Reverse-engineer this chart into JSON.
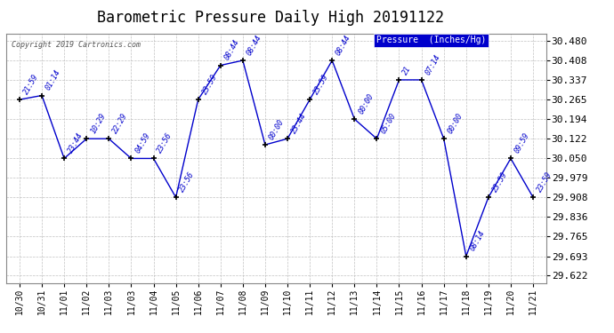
{
  "title": "Barometric Pressure Daily High 20191122",
  "copyright": "Copyright 2019 Cartronics.com",
  "legend_label": "Pressure  (Inches/Hg)",
  "x_labels": [
    "10/30",
    "10/31",
    "11/01",
    "11/02",
    "11/03",
    "11/03",
    "11/04",
    "11/05",
    "11/06",
    "11/07",
    "11/08",
    "11/09",
    "11/10",
    "11/11",
    "11/12",
    "11/13",
    "11/14",
    "11/15",
    "11/16",
    "11/17",
    "11/18",
    "11/19",
    "11/20",
    "11/21"
  ],
  "x_positions": [
    0,
    1,
    2,
    3,
    4,
    5,
    6,
    7,
    8,
    9,
    10,
    11,
    12,
    13,
    14,
    15,
    16,
    17,
    18,
    19,
    20,
    21,
    22,
    23
  ],
  "y_values": [
    30.265,
    30.28,
    30.05,
    30.122,
    30.122,
    30.05,
    30.05,
    29.908,
    30.265,
    30.39,
    30.408,
    30.1,
    30.122,
    30.265,
    30.408,
    30.194,
    30.122,
    30.337,
    30.337,
    30.122,
    29.693,
    29.908,
    30.05,
    29.908
  ],
  "point_labels": [
    "21:59",
    "01:14",
    "23:44",
    "10:29",
    "22:29",
    "04:59",
    "23:56",
    "23:56",
    "23:59",
    "08:44",
    "08:44",
    "00:00",
    "23:44",
    "23:59",
    "08:44",
    "00:00",
    "05:00",
    "21",
    "07:14",
    "00:00",
    "08:14",
    "23:59",
    "09:59",
    "23:59"
  ],
  "y_ticks": [
    29.622,
    29.693,
    29.765,
    29.836,
    29.908,
    29.979,
    30.05,
    30.122,
    30.194,
    30.265,
    30.337,
    30.408,
    30.48
  ],
  "line_color": "#0000CC",
  "grid_color": "#BBBBBB",
  "bg_color": "#FFFFFF",
  "title_fontsize": 12,
  "tick_fontsize": 7,
  "annot_fontsize": 6,
  "ylim_min": 29.595,
  "ylim_max": 30.507,
  "xlim_min": -0.6,
  "xlim_max": 23.6
}
